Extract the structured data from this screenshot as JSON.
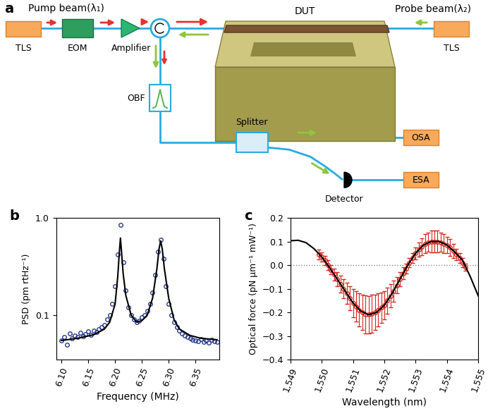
{
  "diagram": {
    "panel": "a",
    "pump_label": "Pump beam(λ₁)",
    "probe_label": "Probe beam(λ₂)",
    "nodes": {
      "pump_source": "TLS",
      "modulator": "EOM",
      "amplifier": "Amplifier",
      "device": "DUT",
      "probe_source": "TLS",
      "filter": "OBF",
      "splitter": "Splitter",
      "osa": "OSA",
      "esa": "ESA",
      "detector": "Detector"
    }
  },
  "chart_data": [
    {
      "panel": "b",
      "type": "scatter",
      "x_label": "Frequency (MHz)",
      "y_label": "PSD (pm rtHz⁻¹)",
      "log": "y",
      "grid": false,
      "xlim": [
        6.09,
        6.395
      ],
      "xticks": [
        {
          "value": 6.1,
          "label": "6.10"
        },
        6.15,
        {
          "value": 6.2,
          "label": "6.20"
        },
        6.25,
        {
          "value": 6.3,
          "label": "6.30"
        },
        6.35
      ],
      "ylim": [
        0.035,
        1.0
      ],
      "yticks": [
        0.1,
        {
          "value": 1,
          "label": "1.0"
        }
      ],
      "series": [
        {
          "type": "scatter",
          "color": "#2b3a8f",
          "marker": "o",
          "x": [
            6.1,
            6.105,
            6.11,
            6.115,
            6.12,
            6.125,
            6.13,
            6.135,
            6.14,
            6.145,
            6.15,
            6.155,
            6.16,
            6.165,
            6.17,
            6.175,
            6.18,
            6.185,
            6.19,
            6.195,
            6.2,
            6.205,
            6.21,
            6.215,
            6.22,
            6.225,
            6.23,
            6.235,
            6.24,
            6.245,
            6.25,
            6.255,
            6.26,
            6.265,
            6.27,
            6.275,
            6.28,
            6.285,
            6.29,
            6.295,
            6.3,
            6.305,
            6.31,
            6.315,
            6.32,
            6.325,
            6.33,
            6.335,
            6.34,
            6.345,
            6.35,
            6.355,
            6.36,
            6.365,
            6.37,
            6.375,
            6.38,
            6.385,
            6.39
          ],
          "values": [
            0.055,
            0.06,
            0.05,
            0.065,
            0.058,
            0.062,
            0.06,
            0.066,
            0.061,
            0.064,
            0.068,
            0.063,
            0.07,
            0.067,
            0.072,
            0.075,
            0.08,
            0.09,
            0.1,
            0.13,
            0.2,
            0.42,
            0.85,
            0.35,
            0.18,
            0.12,
            0.1,
            0.09,
            0.085,
            0.088,
            0.095,
            0.1,
            0.11,
            0.13,
            0.17,
            0.26,
            0.45,
            0.6,
            0.38,
            0.2,
            0.13,
            0.1,
            0.085,
            0.075,
            0.07,
            0.065,
            0.062,
            0.06,
            0.058,
            0.056,
            0.055,
            0.054,
            0.057,
            0.053,
            0.055,
            0.052,
            0.056,
            0.054,
            0.053
          ]
        },
        {
          "type": "line",
          "color": "#000000",
          "line_style": "solid",
          "x": [
            6.1,
            6.13,
            6.16,
            6.18,
            6.19,
            6.2,
            6.205,
            6.208,
            6.21,
            6.212,
            6.215,
            6.22,
            6.23,
            6.24,
            6.25,
            6.26,
            6.27,
            6.278,
            6.282,
            6.285,
            6.288,
            6.292,
            6.3,
            6.31,
            6.32,
            6.34,
            6.36,
            6.39
          ],
          "values": [
            0.055,
            0.058,
            0.063,
            0.072,
            0.085,
            0.13,
            0.25,
            0.45,
            0.62,
            0.45,
            0.27,
            0.16,
            0.1,
            0.085,
            0.088,
            0.1,
            0.15,
            0.3,
            0.48,
            0.58,
            0.48,
            0.3,
            0.15,
            0.09,
            0.072,
            0.062,
            0.058,
            0.056
          ]
        }
      ]
    },
    {
      "panel": "c",
      "type": "scatter",
      "x_label": "Wavelength (nm)",
      "y_label": "Optical force (pN µm⁻¹ mW⁻¹)",
      "grid": false,
      "reference_line": 0,
      "xlim": [
        1549,
        1555
      ],
      "xticks": [
        {
          "value": 1549,
          "label": "1,549"
        },
        {
          "value": 1550,
          "label": "1,550"
        },
        {
          "value": 1551,
          "label": "1,551"
        },
        {
          "value": 1552,
          "label": "1,552"
        },
        {
          "value": 1553,
          "label": "1,553"
        },
        {
          "value": 1554,
          "label": "1,554"
        },
        {
          "value": 1555,
          "label": "1,555"
        }
      ],
      "ylim": [
        -0.4,
        0.2
      ],
      "yticks": [
        {
          "value": -0.4,
          "label": "−0.4"
        },
        {
          "value": -0.3,
          "label": "−0.3"
        },
        {
          "value": -0.2,
          "label": "−0.2"
        },
        {
          "value": -0.1,
          "label": "−0.1"
        },
        {
          "value": 0,
          "label": "0.0"
        },
        0.1,
        0.2
      ],
      "series": [
        {
          "type": "line",
          "color": "#000000",
          "line_style": "solid",
          "x": [
            1549.0,
            1549.25,
            1549.5,
            1549.75,
            1550.0,
            1550.25,
            1550.5,
            1550.75,
            1551.0,
            1551.25,
            1551.5,
            1551.75,
            1552.0,
            1552.25,
            1552.5,
            1552.75,
            1553.0,
            1553.25,
            1553.5,
            1553.75,
            1554.0,
            1554.25,
            1554.5,
            1554.75,
            1555.0
          ],
          "values": [
            0.103,
            0.105,
            0.095,
            0.07,
            0.035,
            -0.01,
            -0.06,
            -0.11,
            -0.16,
            -0.195,
            -0.21,
            -0.2,
            -0.17,
            -0.12,
            -0.06,
            0.0,
            0.05,
            0.085,
            0.1,
            0.1,
            0.085,
            0.055,
            0.02,
            -0.05,
            -0.13
          ]
        },
        {
          "type": "scatter",
          "color": "#d7261e",
          "marker": "o",
          "x": [
            1549.9,
            1550.0,
            1550.1,
            1550.2,
            1550.3,
            1550.4,
            1550.5,
            1550.6,
            1550.7,
            1550.8,
            1550.9,
            1551.0,
            1551.1,
            1551.2,
            1551.3,
            1551.4,
            1551.5,
            1551.6,
            1551.7,
            1551.8,
            1551.9,
            1552.0,
            1552.1,
            1552.2,
            1552.3,
            1552.4,
            1552.5,
            1552.6,
            1552.7,
            1552.8,
            1552.9,
            1553.0,
            1553.1,
            1553.2,
            1553.3,
            1553.4,
            1553.5,
            1553.6,
            1553.7,
            1553.8,
            1553.9,
            1554.0,
            1554.1,
            1554.2,
            1554.3,
            1554.4,
            1554.5,
            1554.6
          ],
          "values": [
            0.045,
            0.035,
            0.02,
            0.0,
            -0.02,
            -0.04,
            -0.06,
            -0.08,
            -0.1,
            -0.12,
            -0.14,
            -0.16,
            -0.175,
            -0.19,
            -0.2,
            -0.208,
            -0.21,
            -0.205,
            -0.2,
            -0.19,
            -0.18,
            -0.17,
            -0.15,
            -0.13,
            -0.11,
            -0.085,
            -0.06,
            -0.035,
            -0.015,
            0.01,
            0.03,
            0.05,
            0.065,
            0.078,
            0.09,
            0.097,
            0.1,
            0.1,
            0.1,
            0.097,
            0.09,
            0.085,
            0.075,
            0.06,
            0.045,
            0.03,
            0.01,
            -0.01
          ],
          "error": [
            0.02,
            0.02,
            0.02,
            0.02,
            0.02,
            0.025,
            0.03,
            0.035,
            0.04,
            0.045,
            0.05,
            0.06,
            0.065,
            0.07,
            0.075,
            0.08,
            0.08,
            0.08,
            0.075,
            0.07,
            0.065,
            0.06,
            0.055,
            0.05,
            0.045,
            0.035,
            0.03,
            0.025,
            0.02,
            0.02,
            0.02,
            0.025,
            0.03,
            0.035,
            0.04,
            0.04,
            0.045,
            0.045,
            0.045,
            0.04,
            0.04,
            0.035,
            0.035,
            0.03,
            0.025,
            0.02,
            0.02,
            0.015
          ]
        }
      ]
    }
  ]
}
